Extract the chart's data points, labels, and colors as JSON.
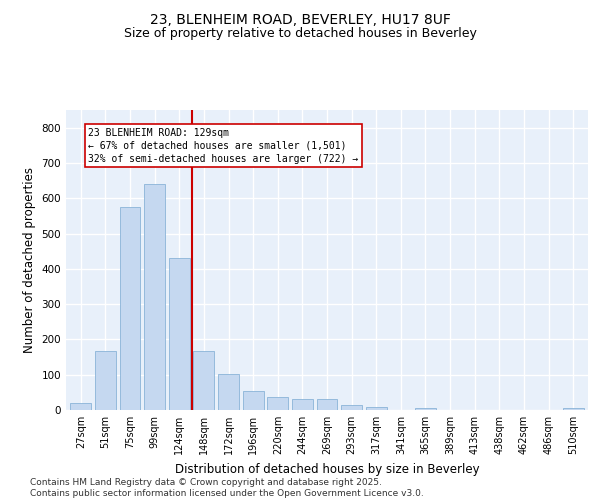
{
  "title_line1": "23, BLENHEIM ROAD, BEVERLEY, HU17 8UF",
  "title_line2": "Size of property relative to detached houses in Beverley",
  "xlabel": "Distribution of detached houses by size in Beverley",
  "ylabel": "Number of detached properties",
  "bar_color": "#c5d8f0",
  "bar_edge_color": "#8ab4d8",
  "categories": [
    "27sqm",
    "51sqm",
    "75sqm",
    "99sqm",
    "124sqm",
    "148sqm",
    "172sqm",
    "196sqm",
    "220sqm",
    "244sqm",
    "269sqm",
    "293sqm",
    "317sqm",
    "341sqm",
    "365sqm",
    "389sqm",
    "413sqm",
    "438sqm",
    "462sqm",
    "486sqm",
    "510sqm"
  ],
  "values": [
    20,
    168,
    575,
    640,
    430,
    168,
    103,
    55,
    38,
    30,
    30,
    14,
    8,
    0,
    5,
    0,
    0,
    0,
    0,
    0,
    6
  ],
  "vline_position": 4.5,
  "vline_color": "#cc0000",
  "annotation_text": "23 BLENHEIM ROAD: 129sqm\n← 67% of detached houses are smaller (1,501)\n32% of semi-detached houses are larger (722) →",
  "annotation_box_color": "white",
  "annotation_box_edge": "#cc0000",
  "ylim": [
    0,
    850
  ],
  "yticks": [
    0,
    100,
    200,
    300,
    400,
    500,
    600,
    700,
    800
  ],
  "background_color": "#e8f0fa",
  "grid_color": "#ffffff",
  "footer_text": "Contains HM Land Registry data © Crown copyright and database right 2025.\nContains public sector information licensed under the Open Government Licence v3.0.",
  "title_fontsize": 10,
  "subtitle_fontsize": 9,
  "tick_fontsize": 7,
  "label_fontsize": 8.5,
  "footer_fontsize": 6.5
}
